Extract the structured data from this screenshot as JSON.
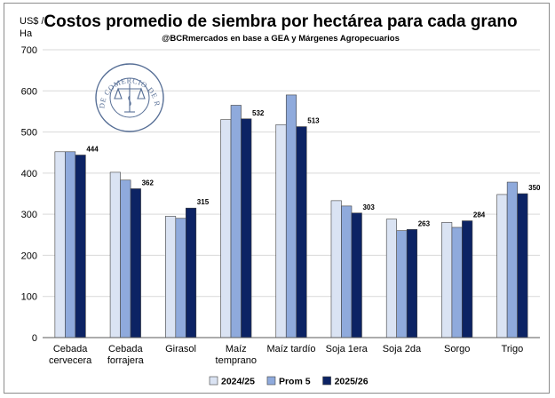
{
  "chart_data": {
    "type": "bar",
    "title": "Costos promedio de siembra por hectárea para cada grano",
    "subtitle": "@BCRmercados en base a GEA y Márgenes Agropecuarios",
    "ylabel": "US$ / Ha",
    "ylabel_lines": [
      "US$ /",
      "Ha"
    ],
    "ylim": [
      0,
      700
    ],
    "yticks": [
      0,
      100,
      200,
      300,
      400,
      500,
      600,
      700
    ],
    "grid": true,
    "legend_position": "bottom",
    "categories": [
      [
        "Cebada",
        "cervecera"
      ],
      [
        "Cebada",
        "forrajera"
      ],
      [
        "Girasol"
      ],
      [
        "Maíz",
        "temprano"
      ],
      [
        "Maíz tardío"
      ],
      [
        "Soja 1era"
      ],
      [
        "Soja 2da"
      ],
      [
        "Sorgo"
      ],
      [
        "Trigo"
      ]
    ],
    "series": [
      {
        "name": "2024/25",
        "color": "#dae3f3",
        "values": [
          452,
          402,
          295,
          530,
          518,
          333,
          288,
          280,
          348
        ]
      },
      {
        "name": "Prom 5",
        "color": "#8faadc",
        "values": [
          452,
          383,
          290,
          565,
          590,
          320,
          260,
          268,
          378
        ]
      },
      {
        "name": "2025/26",
        "color": "#0c2364",
        "values": [
          444,
          362,
          315,
          532,
          513,
          303,
          263,
          284,
          350
        ]
      }
    ],
    "data_labels": {
      "series": "2025/26",
      "values": [
        "444",
        "362",
        "315",
        "532",
        "513",
        "303",
        "263",
        "284",
        "350"
      ]
    }
  },
  "watermark": {
    "logo_text": "BOLSA DE COMERCIO DE ROSARIO",
    "logo_icon": "scales-of-justice-icon",
    "color": "#1f3f73"
  }
}
